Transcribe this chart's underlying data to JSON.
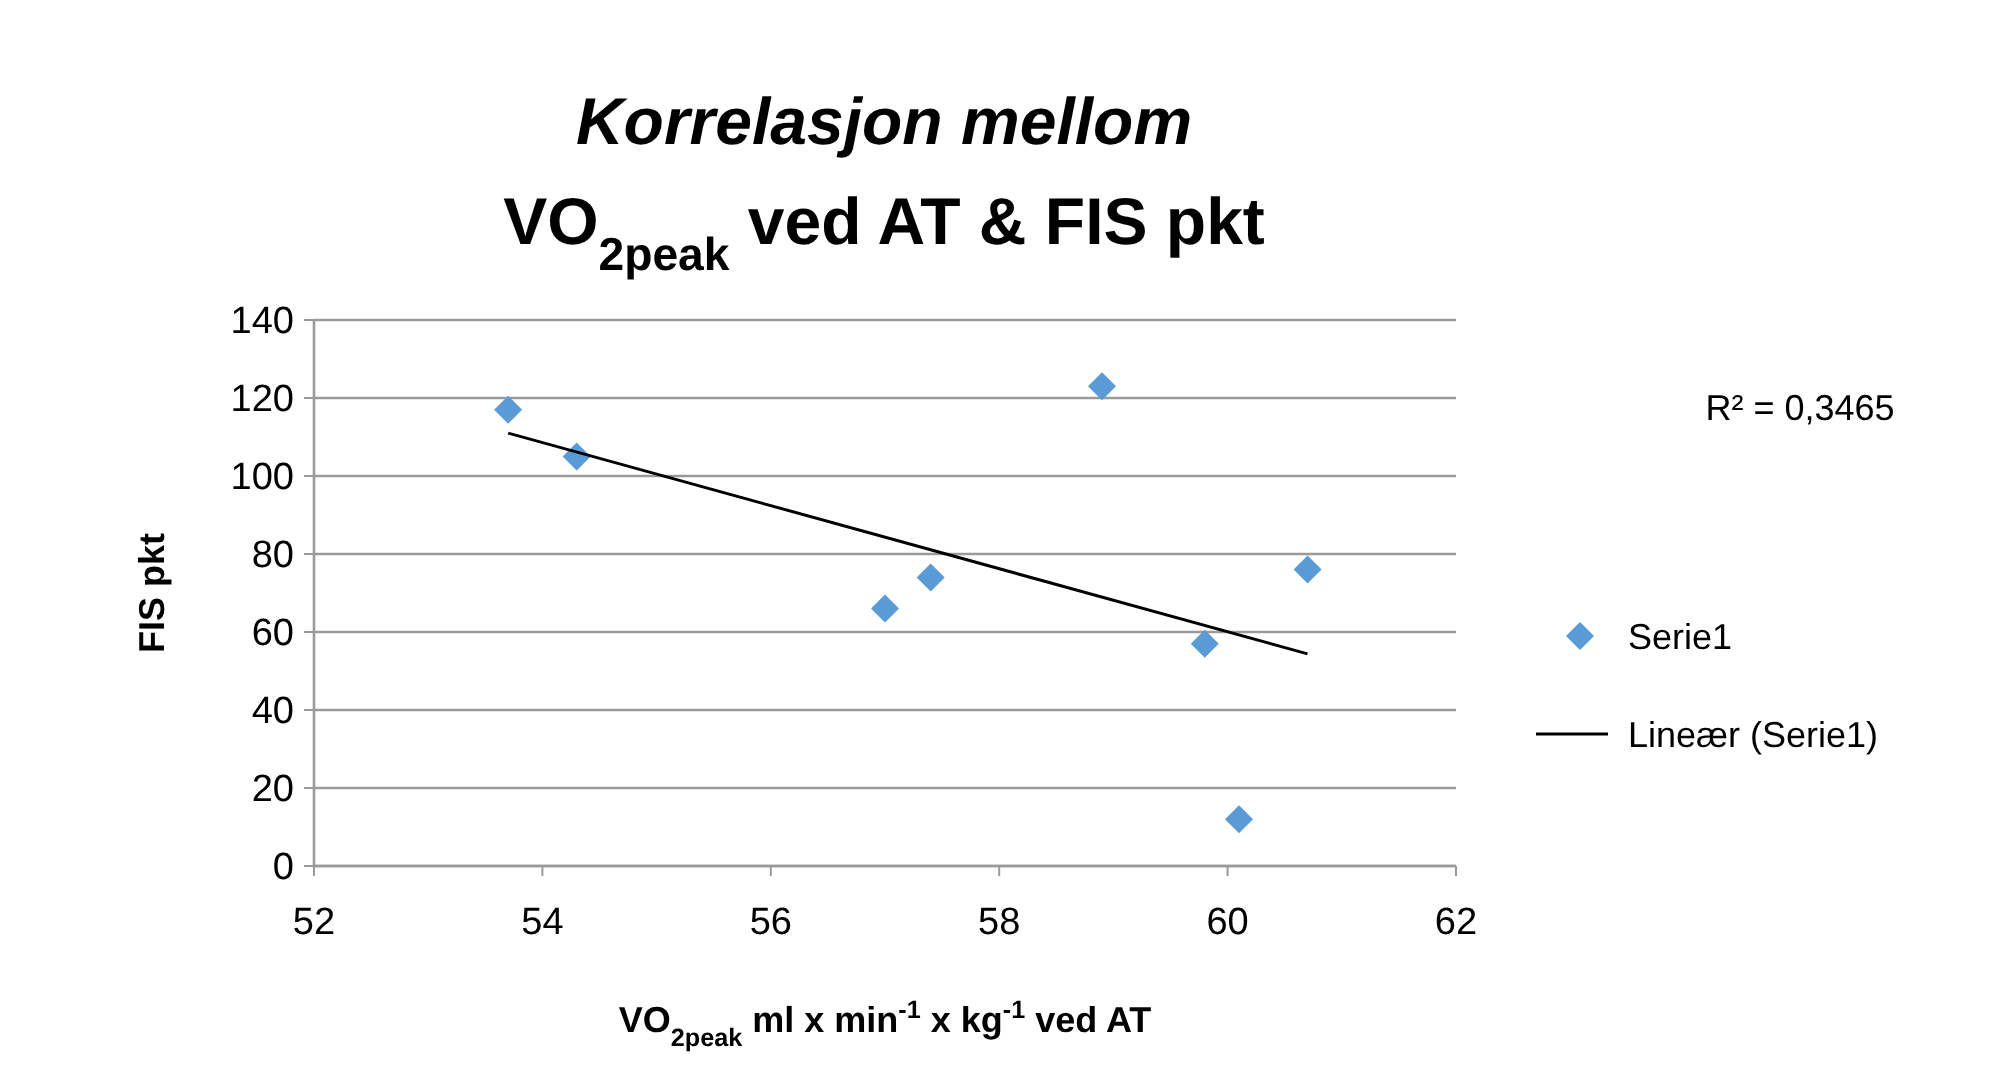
{
  "chart_data": {
    "type": "scatter",
    "title": "Korrelasjon mellom",
    "subtitle": "VO$_{2peak}$ ved AT & FIS pkt",
    "xlabel": "VO$_{2peak}$ ml x min$^{-1}$ x kg$^{-1}$ ved AT",
    "ylabel": "FIS pkt",
    "xlim": [
      52,
      62
    ],
    "xticks": [
      52,
      54,
      56,
      58,
      60,
      62
    ],
    "ylim": [
      0,
      140
    ],
    "yticks": [
      0,
      20,
      40,
      60,
      80,
      100,
      120,
      140
    ],
    "grid": "y",
    "legend": "right",
    "marker": "diamond",
    "annotations": [
      "R² = 0,3465"
    ],
    "series": [
      {
        "name": "Serie1",
        "color": "#5b9bd5",
        "x": [
          53.7,
          54.3,
          57.0,
          57.4,
          58.9,
          59.8,
          60.1,
          60.7
        ],
        "values": [
          117,
          105,
          66,
          74,
          123,
          57,
          12,
          76
        ]
      },
      {
        "name": "Lineær (Serie1)",
        "type": "line",
        "color": "#000000",
        "marker": "none",
        "line_style": "solid",
        "x": [
          53.7,
          60.7
        ],
        "values": [
          111,
          54.4
        ]
      }
    ]
  }
}
